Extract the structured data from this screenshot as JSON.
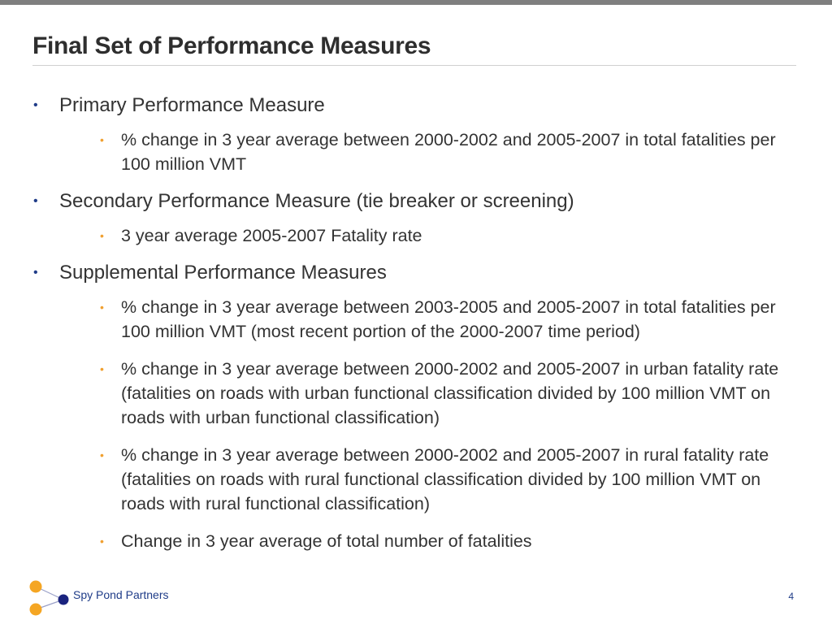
{
  "slide": {
    "title": "Final Set of Performance Measures",
    "sections": [
      {
        "heading": "Primary Performance Measure",
        "items": [
          "% change in 3 year average between 2000-2002 and 2005-2007 in total fatalities per 100 million VMT"
        ]
      },
      {
        "heading": "Secondary Performance Measure (tie breaker or screening)",
        "items": [
          "3 year average 2005-2007 Fatality rate"
        ]
      },
      {
        "heading": "Supplemental Performance Measures",
        "items": [
          "% change in 3 year average between 2003-2005 and 2005-2007 in total fatalities per 100 million VMT (most recent portion of the 2000-2007 time period)",
          "% change in 3 year average between 2000-2002 and 2005-2007 in urban fatality rate (fatalities on roads with urban functional classification divided by 100 million VMT on roads with urban functional classification)",
          "% change in 3 year average between 2000-2002 and 2005-2007 in rural fatality rate (fatalities on roads with rural functional classification divided by 100 million VMT on roads with rural functional classification)",
          "Change in 3 year average of total number of fatalities"
        ]
      }
    ]
  },
  "footer": {
    "brand": "Spy Pond Partners",
    "page_number": "4"
  },
  "colors": {
    "top_bar": "#7f7f7f",
    "title_text": "#2e2e2e",
    "level1_bullet": "#1f3c88",
    "level2_bullet": "#f0a030",
    "logo_orange": "#f5a623",
    "logo_navy": "#1a237e",
    "brand_text": "#1f3c88"
  }
}
